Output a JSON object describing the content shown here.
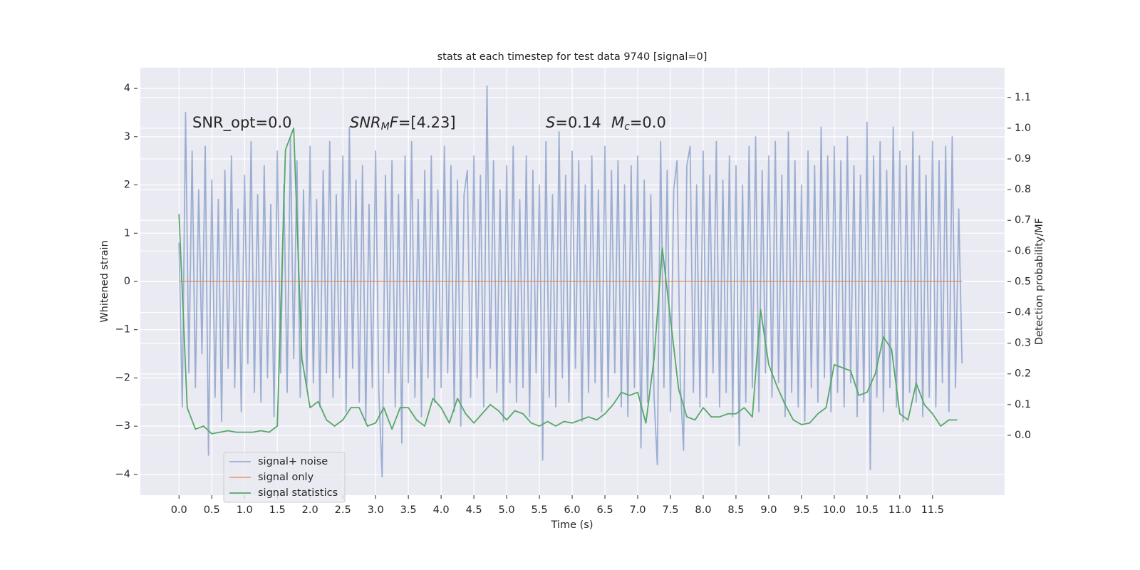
{
  "chart_data": {
    "type": "line",
    "title": "stats at each timestep for test data 9740 [signal=0]",
    "xlabel": "Time (s)",
    "ylabel": "Whitened strain",
    "y2label": "Detection probability/MF",
    "annotations": [
      {
        "parts": [
          {
            "t": "SNR_opt=0.0"
          }
        ]
      },
      {
        "parts": [
          {
            "t": "SNR",
            "italic": true
          },
          {
            "t": "M",
            "italic": true,
            "sub": true
          },
          {
            "t": "F",
            "italic": true
          },
          {
            "t": "=[4.23]"
          }
        ]
      },
      {
        "parts": [
          {
            "t": "S",
            "italic": true
          },
          {
            "t": "=0.14"
          }
        ]
      },
      {
        "parts": [
          {
            "t": "M",
            "italic": true
          },
          {
            "t": "c",
            "italic": true,
            "sub": true
          },
          {
            "t": "=0.0"
          }
        ]
      }
    ],
    "xlim": [
      -0.59,
      12.6
    ],
    "xticks": [
      {
        "value": 0,
        "label": "0.0"
      },
      {
        "value": 0.5,
        "label": "0.5"
      },
      {
        "value": 1,
        "label": "1.0"
      },
      {
        "value": 1.5,
        "label": "1.5"
      },
      {
        "value": 2,
        "label": "2.0"
      },
      {
        "value": 2.5,
        "label": "2.5"
      },
      {
        "value": 3,
        "label": "3.0"
      },
      {
        "value": 3.5,
        "label": "3.5"
      },
      {
        "value": 4,
        "label": "4.0"
      },
      {
        "value": 4.5,
        "label": "4.5"
      },
      {
        "value": 5,
        "label": "5.0"
      },
      {
        "value": 5.5,
        "label": "5.5"
      },
      {
        "value": 6,
        "label": "6.0"
      },
      {
        "value": 6.5,
        "label": "6.5"
      },
      {
        "value": 7,
        "label": "7.0"
      },
      {
        "value": 7.5,
        "label": "7.5"
      },
      {
        "value": 8,
        "label": "8.0"
      },
      {
        "value": 8.5,
        "label": "8.5"
      },
      {
        "value": 9,
        "label": "9.0"
      },
      {
        "value": 9.5,
        "label": "9.5"
      },
      {
        "value": 10,
        "label": "10.0"
      },
      {
        "value": 10.5,
        "label": "10.5"
      },
      {
        "value": 11,
        "label": "11.0"
      },
      {
        "value": 11.5,
        "label": "11.5"
      }
    ],
    "ylim": [
      -4.43,
      4.43
    ],
    "yticks": [
      {
        "value": -4,
        "label": "−4"
      },
      {
        "value": -3,
        "label": "−3"
      },
      {
        "value": -2,
        "label": "−2"
      },
      {
        "value": -1,
        "label": "−1"
      },
      0,
      1,
      2,
      3,
      4
    ],
    "y2lim": [
      -0.195,
      1.197
    ],
    "y2ticks": [
      {
        "value": 0,
        "label": "0.0"
      },
      {
        "value": 0.1,
        "label": "0.1"
      },
      {
        "value": 0.2,
        "label": "0.2"
      },
      {
        "value": 0.3,
        "label": "0.3"
      },
      {
        "value": 0.4,
        "label": "0.4"
      },
      {
        "value": 0.5,
        "label": "0.5"
      },
      {
        "value": 0.6,
        "label": "0.6"
      },
      {
        "value": 0.7,
        "label": "0.7"
      },
      {
        "value": 0.8,
        "label": "0.8"
      },
      {
        "value": 0.9,
        "label": "0.9"
      },
      {
        "value": 1,
        "label": "1.0"
      },
      {
        "value": 1.1,
        "label": "1.1"
      }
    ],
    "grid": true,
    "legend": "lower left",
    "series": [
      {
        "name": "signal+ noise",
        "color": "#4c72b0",
        "opacity": 0.5,
        "x": [
          0,
          0.05,
          0.1,
          0.15,
          0.2,
          0.25,
          0.3,
          0.35,
          0.4,
          0.45,
          0.5,
          0.55,
          0.6,
          0.65,
          0.7,
          0.75,
          0.8,
          0.85,
          0.9,
          0.95,
          1,
          1.05,
          1.1,
          1.15,
          1.2,
          1.25,
          1.3,
          1.35,
          1.4,
          1.45,
          1.5,
          1.55,
          1.6,
          1.65,
          1.7,
          1.75,
          1.8,
          1.85,
          1.9,
          1.95,
          2,
          2.05,
          2.1,
          2.15,
          2.2,
          2.25,
          2.3,
          2.35,
          2.4,
          2.45,
          2.5,
          2.55,
          2.6,
          2.65,
          2.7,
          2.75,
          2.8,
          2.85,
          2.9,
          2.95,
          3,
          3.05,
          3.1,
          3.15,
          3.2,
          3.25,
          3.3,
          3.35,
          3.4,
          3.45,
          3.5,
          3.55,
          3.6,
          3.65,
          3.7,
          3.75,
          3.8,
          3.85,
          3.9,
          3.95,
          4,
          4.05,
          4.1,
          4.15,
          4.2,
          4.25,
          4.3,
          4.35,
          4.4,
          4.45,
          4.5,
          4.55,
          4.6,
          4.65,
          4.7,
          4.75,
          4.8,
          4.85,
          4.9,
          4.95,
          5,
          5.05,
          5.1,
          5.15,
          5.2,
          5.25,
          5.3,
          5.35,
          5.4,
          5.45,
          5.5,
          5.55,
          5.6,
          5.65,
          5.7,
          5.75,
          5.8,
          5.85,
          5.9,
          5.95,
          6,
          6.05,
          6.1,
          6.15,
          6.2,
          6.25,
          6.3,
          6.35,
          6.4,
          6.45,
          6.5,
          6.55,
          6.6,
          6.65,
          6.7,
          6.75,
          6.8,
          6.85,
          6.9,
          6.95,
          7,
          7.05,
          7.1,
          7.15,
          7.2,
          7.25,
          7.3,
          7.35,
          7.4,
          7.45,
          7.5,
          7.55,
          7.6,
          7.65,
          7.7,
          7.75,
          7.8,
          7.85,
          7.9,
          7.95,
          8,
          8.05,
          8.1,
          8.15,
          8.2,
          8.25,
          8.3,
          8.35,
          8.4,
          8.45,
          8.5,
          8.55,
          8.6,
          8.65,
          8.7,
          8.75,
          8.8,
          8.85,
          8.9,
          8.95,
          9,
          9.05,
          9.1,
          9.15,
          9.2,
          9.25,
          9.3,
          9.35,
          9.4,
          9.45,
          9.5,
          9.55,
          9.6,
          9.65,
          9.7,
          9.75,
          9.8,
          9.85,
          9.9,
          9.95,
          10,
          10.05,
          10.1,
          10.15,
          10.2,
          10.25,
          10.3,
          10.35,
          10.4,
          10.45,
          10.5,
          10.55,
          10.6,
          10.65,
          10.7,
          10.75,
          10.8,
          10.85,
          10.9,
          10.95,
          11,
          11.05,
          11.1,
          11.15,
          11.2,
          11.25,
          11.3,
          11.35,
          11.4,
          11.45,
          11.5,
          11.55,
          11.6,
          11.65,
          11.7,
          11.75,
          11.8,
          11.85,
          11.9,
          11.95
        ],
        "values": [
          0.8,
          -2.6,
          3.5,
          -1.9,
          2.7,
          -2.2,
          1.9,
          -1.5,
          2.8,
          -3.6,
          2.1,
          -2.4,
          1.7,
          -2.9,
          2.3,
          -1.8,
          2.6,
          -2.2,
          1.5,
          -2.7,
          2.2,
          -1.7,
          2.9,
          -2.3,
          1.8,
          -2.5,
          2.4,
          -2.0,
          1.6,
          -2.8,
          2.7,
          -1.9,
          2.0,
          -2.3,
          3.0,
          -1.6,
          2.5,
          -2.4,
          1.9,
          -2.2,
          2.8,
          -2.1,
          1.7,
          -2.6,
          2.3,
          -1.9,
          2.9,
          -2.4,
          1.8,
          -2.0,
          2.6,
          -2.7,
          3.2,
          -1.8,
          2.1,
          -2.5,
          2.4,
          -2.9,
          1.6,
          -2.2,
          2.7,
          -2.3,
          -4.05,
          2.2,
          -1.9,
          2.5,
          -2.6,
          1.8,
          -3.35,
          2.6,
          -2.1,
          2.9,
          -2.4,
          1.7,
          -2.8,
          2.3,
          -2.0,
          2.6,
          -2.5,
          1.9,
          -2.2,
          2.8,
          -1.9,
          2.4,
          -2.7,
          2.1,
          -3.0,
          1.8,
          2.3,
          -2.4,
          2.6,
          -2.0,
          2.2,
          -2.6,
          4.05,
          -1.8,
          2.5,
          -2.3,
          1.9,
          -2.9,
          2.4,
          -2.1,
          2.8,
          -2.5,
          1.7,
          -2.2,
          2.6,
          -2.8,
          2.3,
          -1.9,
          2.0,
          -3.7,
          2.9,
          -2.4,
          1.8,
          -2.6,
          3.1,
          -2.0,
          2.2,
          -2.5,
          2.7,
          -1.8,
          2.5,
          -2.9,
          2.0,
          -2.3,
          2.6,
          -2.1,
          1.9,
          -2.7,
          2.8,
          -2.4,
          2.3,
          -1.9,
          2.5,
          -2.6,
          2.0,
          -2.8,
          2.4,
          -2.2,
          2.6,
          -3.45,
          2.1,
          -2.5,
          1.8,
          -2.4,
          -3.8,
          2.9,
          -2.2,
          2.3,
          -2.7,
          1.9,
          2.5,
          -2.1,
          -3.5,
          2.4,
          2.8,
          -2.3,
          2.0,
          -2.6,
          2.7,
          -2.4,
          2.2,
          -1.9,
          2.9,
          -2.6,
          2.1,
          -2.3,
          2.6,
          -2.8,
          2.4,
          -3.4,
          2.0,
          -2.5,
          2.8,
          -2.2,
          3.0,
          -2.7,
          2.3,
          -1.9,
          2.6,
          -2.4,
          2.9,
          -2.1,
          2.2,
          -2.8,
          3.1,
          -2.3,
          2.5,
          -2.6,
          2.0,
          -2.9,
          2.7,
          -2.2,
          2.4,
          -2.5,
          3.2,
          -2.0,
          2.6,
          -2.7,
          2.8,
          -2.3,
          2.5,
          -2.6,
          3.0,
          -2.1,
          2.4,
          -2.8,
          2.2,
          -2.5,
          3.3,
          -3.9,
          2.6,
          -2.4,
          2.9,
          -2.7,
          2.3,
          -2.2,
          3.2,
          -2.6,
          2.7,
          -2.9,
          2.4,
          -2.3,
          3.1,
          -2.5,
          2.6,
          -2.8,
          2.2,
          -2.4,
          2.9,
          -2.6,
          2.5,
          -2.1,
          2.8,
          -2.7,
          3.0,
          -2.2,
          1.5,
          -1.7
        ]
      },
      {
        "name": "signal only",
        "color": "#dd8452",
        "opacity": 0.7,
        "x": [
          0,
          11.95
        ],
        "values": [
          0,
          0
        ]
      },
      {
        "name": "signal statistics",
        "color": "#55a868",
        "opacity": 1,
        "axis": "y2",
        "x": [
          0,
          0.125,
          0.25,
          0.375,
          0.5,
          0.625,
          0.75,
          0.875,
          1,
          1.125,
          1.25,
          1.375,
          1.5,
          1.625,
          1.75,
          1.875,
          2,
          2.125,
          2.25,
          2.375,
          2.5,
          2.625,
          2.75,
          2.875,
          3,
          3.125,
          3.25,
          3.375,
          3.5,
          3.625,
          3.75,
          3.875,
          4,
          4.125,
          4.25,
          4.375,
          4.5,
          4.625,
          4.75,
          4.875,
          5,
          5.125,
          5.25,
          5.375,
          5.5,
          5.625,
          5.75,
          5.875,
          6,
          6.125,
          6.25,
          6.375,
          6.5,
          6.625,
          6.75,
          6.875,
          7,
          7.125,
          7.25,
          7.375,
          7.5,
          7.625,
          7.75,
          7.875,
          8,
          8.125,
          8.25,
          8.375,
          8.5,
          8.625,
          8.75,
          8.875,
          9,
          9.125,
          9.25,
          9.375,
          9.5,
          9.625,
          9.75,
          9.875,
          10,
          10.125,
          10.25,
          10.375,
          10.5,
          10.625,
          10.75,
          10.875,
          11,
          11.125,
          11.25,
          11.375,
          11.5,
          11.625,
          11.75,
          11.875
        ],
        "values": [
          0.72,
          0.09,
          0.02,
          0.03,
          0.005,
          0.01,
          0.015,
          0.01,
          0.01,
          0.01,
          0.015,
          0.01,
          0.03,
          0.93,
          1.0,
          0.25,
          0.09,
          0.11,
          0.05,
          0.03,
          0.05,
          0.09,
          0.09,
          0.03,
          0.04,
          0.09,
          0.02,
          0.09,
          0.09,
          0.05,
          0.03,
          0.12,
          0.09,
          0.04,
          0.12,
          0.07,
          0.04,
          0.07,
          0.1,
          0.08,
          0.05,
          0.08,
          0.07,
          0.04,
          0.03,
          0.045,
          0.03,
          0.045,
          0.04,
          0.05,
          0.06,
          0.05,
          0.07,
          0.1,
          0.14,
          0.13,
          0.14,
          0.04,
          0.25,
          0.61,
          0.38,
          0.15,
          0.06,
          0.05,
          0.09,
          0.06,
          0.06,
          0.07,
          0.07,
          0.09,
          0.06,
          0.41,
          0.23,
          0.16,
          0.1,
          0.05,
          0.035,
          0.04,
          0.07,
          0.09,
          0.23,
          0.22,
          0.21,
          0.13,
          0.14,
          0.2,
          0.32,
          0.28,
          0.07,
          0.05,
          0.17,
          0.1,
          0.07,
          0.03,
          0.05,
          0.05
        ]
      }
    ]
  }
}
